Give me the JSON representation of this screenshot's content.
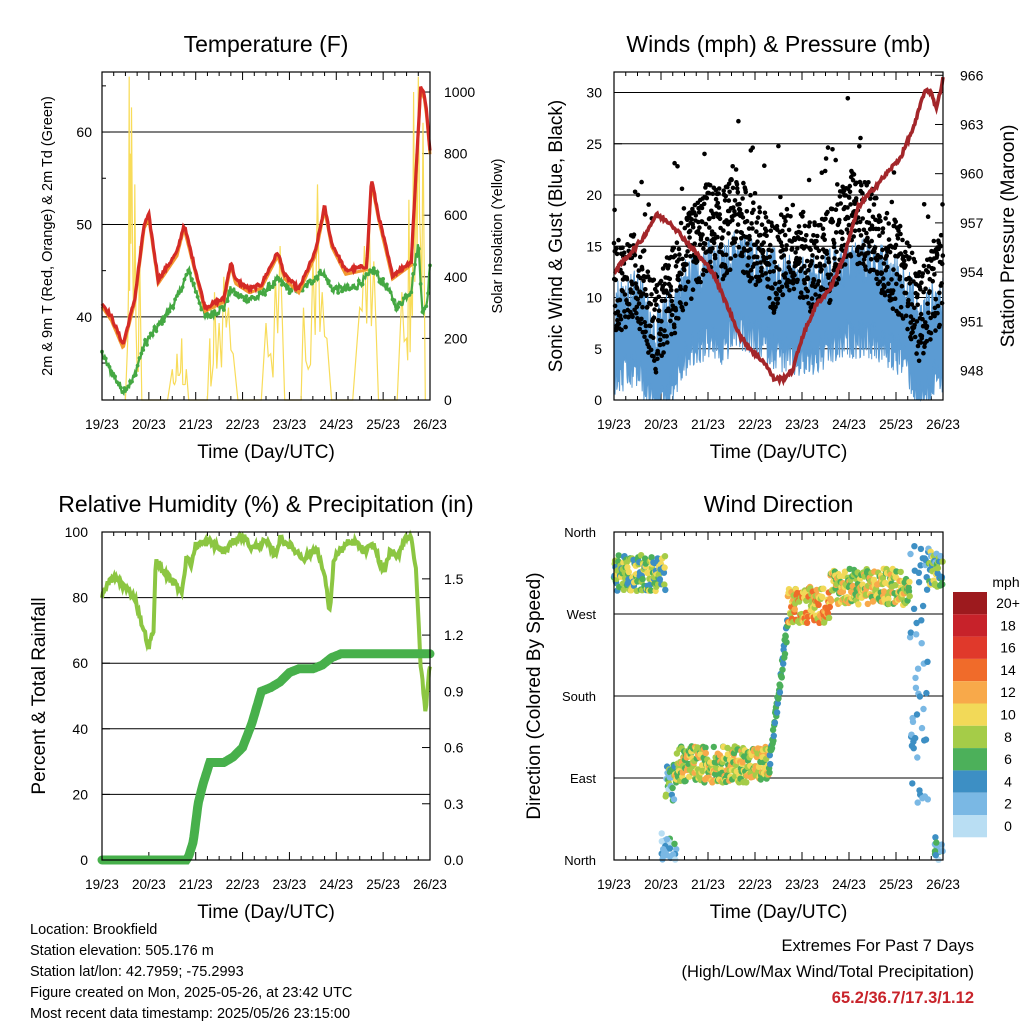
{
  "footer": {
    "location": "Location: Brookfield",
    "elevation": "Station elevation: 505.176 m",
    "latlon": "Station lat/lon: 42.7959; -75.2993",
    "created": "Figure created on Mon, 2025-05-26, at 23:42 UTC",
    "timestamp": "Most recent data timestamp: 2025/05/26 23:15:00"
  },
  "extremes": {
    "title": "Extremes For Past 7 Days",
    "subtitle": "(High/Low/Max Wind/Total Precipitation)",
    "values": "65.2/36.7/17.3/1.12"
  },
  "chart_data": [
    {
      "type": "line",
      "title": "Temperature (F)",
      "xlabel": "Time (Day/UTC)",
      "ylabel": "2m & 9m T (Red, Orange) & 2m Td (Green)",
      "y2label": "Solar Insolation (Yellow)",
      "x_ticks": [
        "19/23",
        "20/23",
        "21/23",
        "22/23",
        "23/23",
        "24/23",
        "25/23",
        "26/23"
      ],
      "xlim": [
        0,
        7
      ],
      "ylim": [
        31,
        66.5
      ],
      "y_ticks": [
        40,
        50,
        60
      ],
      "y2lim": [
        0,
        1065
      ],
      "y2_ticks": [
        0,
        200,
        400,
        600,
        800,
        1000
      ],
      "colors": {
        "t2m": "#d42a26",
        "t9m": "#f3982f",
        "td2m": "#45a843",
        "solar": "#f8dc5a"
      },
      "series": [
        {
          "name": "2m T",
          "x": [
            0,
            0.2,
            0.45,
            0.7,
            0.9,
            1.0,
            1.2,
            1.6,
            1.75,
            1.85,
            2.2,
            2.6,
            2.75,
            2.85,
            3.15,
            3.4,
            3.75,
            3.9,
            4.2,
            4.55,
            4.75,
            4.9,
            5.2,
            5.65,
            5.75,
            5.9,
            6.2,
            6.6,
            6.8,
            6.88,
            6.93,
            7.0
          ],
          "values": [
            41.5,
            40,
            37,
            42,
            50,
            51,
            44,
            47,
            50,
            48,
            41,
            42,
            46,
            44,
            43,
            43.5,
            47,
            44.5,
            43,
            47,
            52,
            48,
            45,
            45.5,
            55,
            51,
            44.5,
            46,
            65,
            64,
            62,
            58
          ]
        },
        {
          "name": "2m Td",
          "x": [
            0,
            0.2,
            0.45,
            0.65,
            0.9,
            1.2,
            1.6,
            1.85,
            2.2,
            2.6,
            2.75,
            3.0,
            3.3,
            3.75,
            4.0,
            4.3,
            4.7,
            4.9,
            5.3,
            5.6,
            5.8,
            6.1,
            6.3,
            6.6,
            6.75,
            6.85,
            6.95,
            7.0
          ],
          "values": [
            36,
            34,
            32,
            33,
            37,
            39,
            42,
            45,
            40,
            41,
            43,
            42,
            42,
            44,
            43,
            43,
            45,
            43,
            43,
            44,
            45,
            43,
            41,
            43,
            48,
            40,
            42,
            46
          ]
        },
        {
          "name": "Solar",
          "x": [
            0.5,
            0.55,
            0.58,
            0.6,
            0.63,
            0.67,
            0.7,
            0.75,
            0.8,
            0.85,
            1.4,
            1.5,
            1.55,
            1.6,
            1.65,
            1.7,
            1.75,
            1.8,
            1.85,
            2.25,
            2.3,
            2.35,
            2.4,
            2.5,
            2.6,
            2.7,
            2.8,
            2.9,
            3.4,
            3.5,
            3.6,
            3.7,
            3.8,
            3.9,
            4.25,
            4.3,
            4.4,
            4.5,
            4.6,
            4.7,
            4.8,
            4.9,
            5.35,
            5.5,
            5.6,
            5.7,
            5.8,
            5.9,
            6.3,
            6.4,
            6.5,
            6.55,
            6.6,
            6.65,
            6.7,
            6.75,
            6.8,
            6.85,
            6.9
          ],
          "values": [
            0,
            200,
            1050,
            800,
            950,
            300,
            700,
            100,
            500,
            0,
            0,
            100,
            50,
            150,
            80,
            200,
            50,
            100,
            0,
            0,
            200,
            80,
            350,
            250,
            400,
            300,
            150,
            0,
            0,
            250,
            150,
            400,
            500,
            0,
            0,
            300,
            100,
            450,
            700,
            350,
            200,
            0,
            0,
            300,
            500,
            600,
            450,
            0,
            0,
            350,
            200,
            650,
            400,
            1000,
            800,
            1050,
            500,
            900,
            0
          ]
        }
      ]
    },
    {
      "type": "scatter",
      "title": "Winds (mph) & Pressure (mb)",
      "xlabel": "Time (Day/UTC)",
      "ylabel": "Sonic Wind & Gust (Blue, Black)",
      "y2label": "Station Pressure (Maroon)",
      "x_ticks": [
        "19/23",
        "20/23",
        "21/23",
        "22/23",
        "23/23",
        "24/23",
        "25/23",
        "26/23"
      ],
      "xlim": [
        0,
        7
      ],
      "ylim": [
        0,
        32
      ],
      "y_ticks": [
        0,
        5,
        10,
        15,
        20,
        25,
        30
      ],
      "y2lim": [
        946.2,
        966.2
      ],
      "y2_ticks": [
        948,
        951,
        954,
        957,
        960,
        963,
        966
      ],
      "colors": {
        "wind": "#5b9bd3",
        "gust": "#000000",
        "pressure": "#a3262a"
      },
      "wind_envelope": {
        "x": [
          0,
          0.5,
          0.9,
          1.2,
          1.5,
          2.0,
          2.3,
          2.6,
          3.0,
          3.4,
          3.8,
          4.2,
          4.6,
          5.0,
          5.4,
          5.8,
          6.2,
          6.5,
          6.8,
          7.0
        ],
        "mean": [
          6,
          7,
          3,
          5,
          8,
          10,
          9,
          11,
          10,
          9,
          8,
          8,
          9,
          10,
          10,
          9,
          8,
          4,
          6,
          6
        ]
      },
      "gust_envelope": {
        "x": [
          0,
          0.5,
          0.9,
          1.2,
          1.5,
          2.0,
          2.3,
          2.6,
          3.0,
          3.4,
          3.8,
          4.2,
          4.6,
          5.0,
          5.4,
          5.8,
          6.2,
          6.5,
          6.8,
          7.0
        ],
        "mean": [
          11,
          12,
          7,
          10,
          13,
          17,
          16,
          18,
          15,
          13,
          15,
          13,
          14,
          18,
          17,
          14,
          12,
          8,
          11,
          12
        ]
      },
      "pressure": {
        "x": [
          0,
          0.3,
          0.6,
          0.9,
          1.2,
          1.5,
          1.8,
          2.1,
          2.4,
          2.7,
          3.0,
          3.2,
          3.4,
          3.6,
          3.8,
          4.0,
          4.3,
          4.6,
          4.9,
          5.2,
          5.5,
          5.8,
          6.1,
          6.4,
          6.6,
          6.75,
          6.85,
          6.95,
          7.0
        ],
        "values": [
          954,
          955,
          956,
          957.5,
          957,
          956,
          955,
          954,
          952,
          950,
          949,
          948.5,
          947.5,
          947.5,
          948,
          950,
          952,
          953,
          955,
          958,
          959,
          960,
          961,
          963,
          965,
          965,
          964,
          965,
          966
        ]
      }
    },
    {
      "type": "line",
      "title": "Relative Humidity (%) & Precipitation (in)",
      "xlabel": "Time (Day/UTC)",
      "ylabel": "Percent & Total Rainfall",
      "x_ticks": [
        "19/23",
        "20/23",
        "21/23",
        "22/23",
        "23/23",
        "24/23",
        "25/23",
        "26/23"
      ],
      "xlim": [
        0,
        7
      ],
      "ylim": [
        0,
        100
      ],
      "y_ticks": [
        0,
        20,
        40,
        60,
        80,
        100
      ],
      "y2lim": [
        0,
        1.75
      ],
      "y2_ticks": [
        "0.0",
        "0.3",
        "0.6",
        "0.9",
        "1.2",
        "1.5"
      ],
      "colors": {
        "rh": "#8cc642",
        "precip": "#47b04b"
      },
      "series": [
        {
          "name": "RH",
          "x": [
            0,
            0.15,
            0.3,
            0.5,
            0.7,
            0.85,
            1.0,
            1.1,
            1.15,
            1.3,
            1.5,
            1.7,
            1.8,
            1.9,
            2.0,
            2.3,
            2.6,
            2.8,
            3.0,
            3.2,
            3.5,
            3.7,
            3.8,
            4.0,
            4.3,
            4.6,
            4.8,
            4.85,
            4.95,
            5.2,
            5.4,
            5.6,
            5.8,
            6.0,
            6.15,
            6.3,
            6.45,
            6.6,
            6.7,
            6.8,
            6.9,
            7.0
          ],
          "values": [
            80,
            85,
            86,
            83,
            80,
            72,
            65,
            70,
            92,
            88,
            85,
            82,
            92,
            90,
            96,
            97,
            94,
            97,
            99,
            95,
            97,
            93,
            98,
            96,
            92,
            95,
            83,
            74,
            92,
            96,
            97,
            94,
            96,
            88,
            94,
            92,
            98,
            99,
            88,
            60,
            45,
            60
          ]
        },
        {
          "name": "Precipitation",
          "x": [
            0,
            1.8,
            1.85,
            1.95,
            2.05,
            2.15,
            2.3,
            2.6,
            2.8,
            3.0,
            3.2,
            3.4,
            3.6,
            3.8,
            4.0,
            4.2,
            4.5,
            4.7,
            4.9,
            5.1,
            5.4,
            5.8,
            7.0
          ],
          "values": [
            0,
            0,
            0.02,
            0.1,
            0.3,
            0.4,
            0.52,
            0.52,
            0.55,
            0.6,
            0.73,
            0.9,
            0.92,
            0.95,
            1.0,
            1.02,
            1.02,
            1.04,
            1.08,
            1.1,
            1.1,
            1.1,
            1.1
          ]
        }
      ]
    },
    {
      "type": "scatter",
      "title": "Wind Direction",
      "xlabel": "Time (Day/UTC)",
      "ylabel": "Direction (Colored By Speed)",
      "x_ticks": [
        "19/23",
        "20/23",
        "21/23",
        "22/23",
        "23/23",
        "24/23",
        "25/23",
        "26/23"
      ],
      "xlim": [
        0,
        7
      ],
      "y_ticks": [
        "North",
        "East",
        "South",
        "West",
        "North"
      ],
      "ylim": [
        0,
        360
      ],
      "legend": {
        "title": "mph",
        "labels": [
          "20+",
          "18",
          "16",
          "14",
          "12",
          "10",
          "8",
          "6",
          "4",
          "2",
          "0"
        ],
        "colors": [
          "#9d1a1e",
          "#c7222a",
          "#e0392b",
          "#f06b2a",
          "#f8a94a",
          "#f2d958",
          "#a5cc48",
          "#4cb05a",
          "#3d8fc4",
          "#7ab8e4",
          "#b9def3"
        ]
      },
      "segments": [
        {
          "x_start": 0.0,
          "x_end": 1.1,
          "dir_mean": 315,
          "speed": 7
        },
        {
          "x_start": 1.1,
          "x_end": 1.3,
          "dir_mean": 85,
          "speed": 4
        },
        {
          "x_start": 1.3,
          "x_end": 3.3,
          "dir_mean": 105,
          "speed": 9
        },
        {
          "x_start": 3.3,
          "x_end": 3.7,
          "dir_mean": 190,
          "speed": 4
        },
        {
          "x_start": 3.7,
          "x_end": 4.6,
          "dir_mean": 280,
          "speed": 11
        },
        {
          "x_start": 4.6,
          "x_end": 6.3,
          "dir_mean": 300,
          "speed": 9
        },
        {
          "x_start": 6.3,
          "x_end": 6.7,
          "dir_mean": 200,
          "speed": 2
        },
        {
          "x_start": 6.7,
          "x_end": 7.0,
          "dir_mean": 320,
          "speed": 6
        }
      ]
    }
  ]
}
